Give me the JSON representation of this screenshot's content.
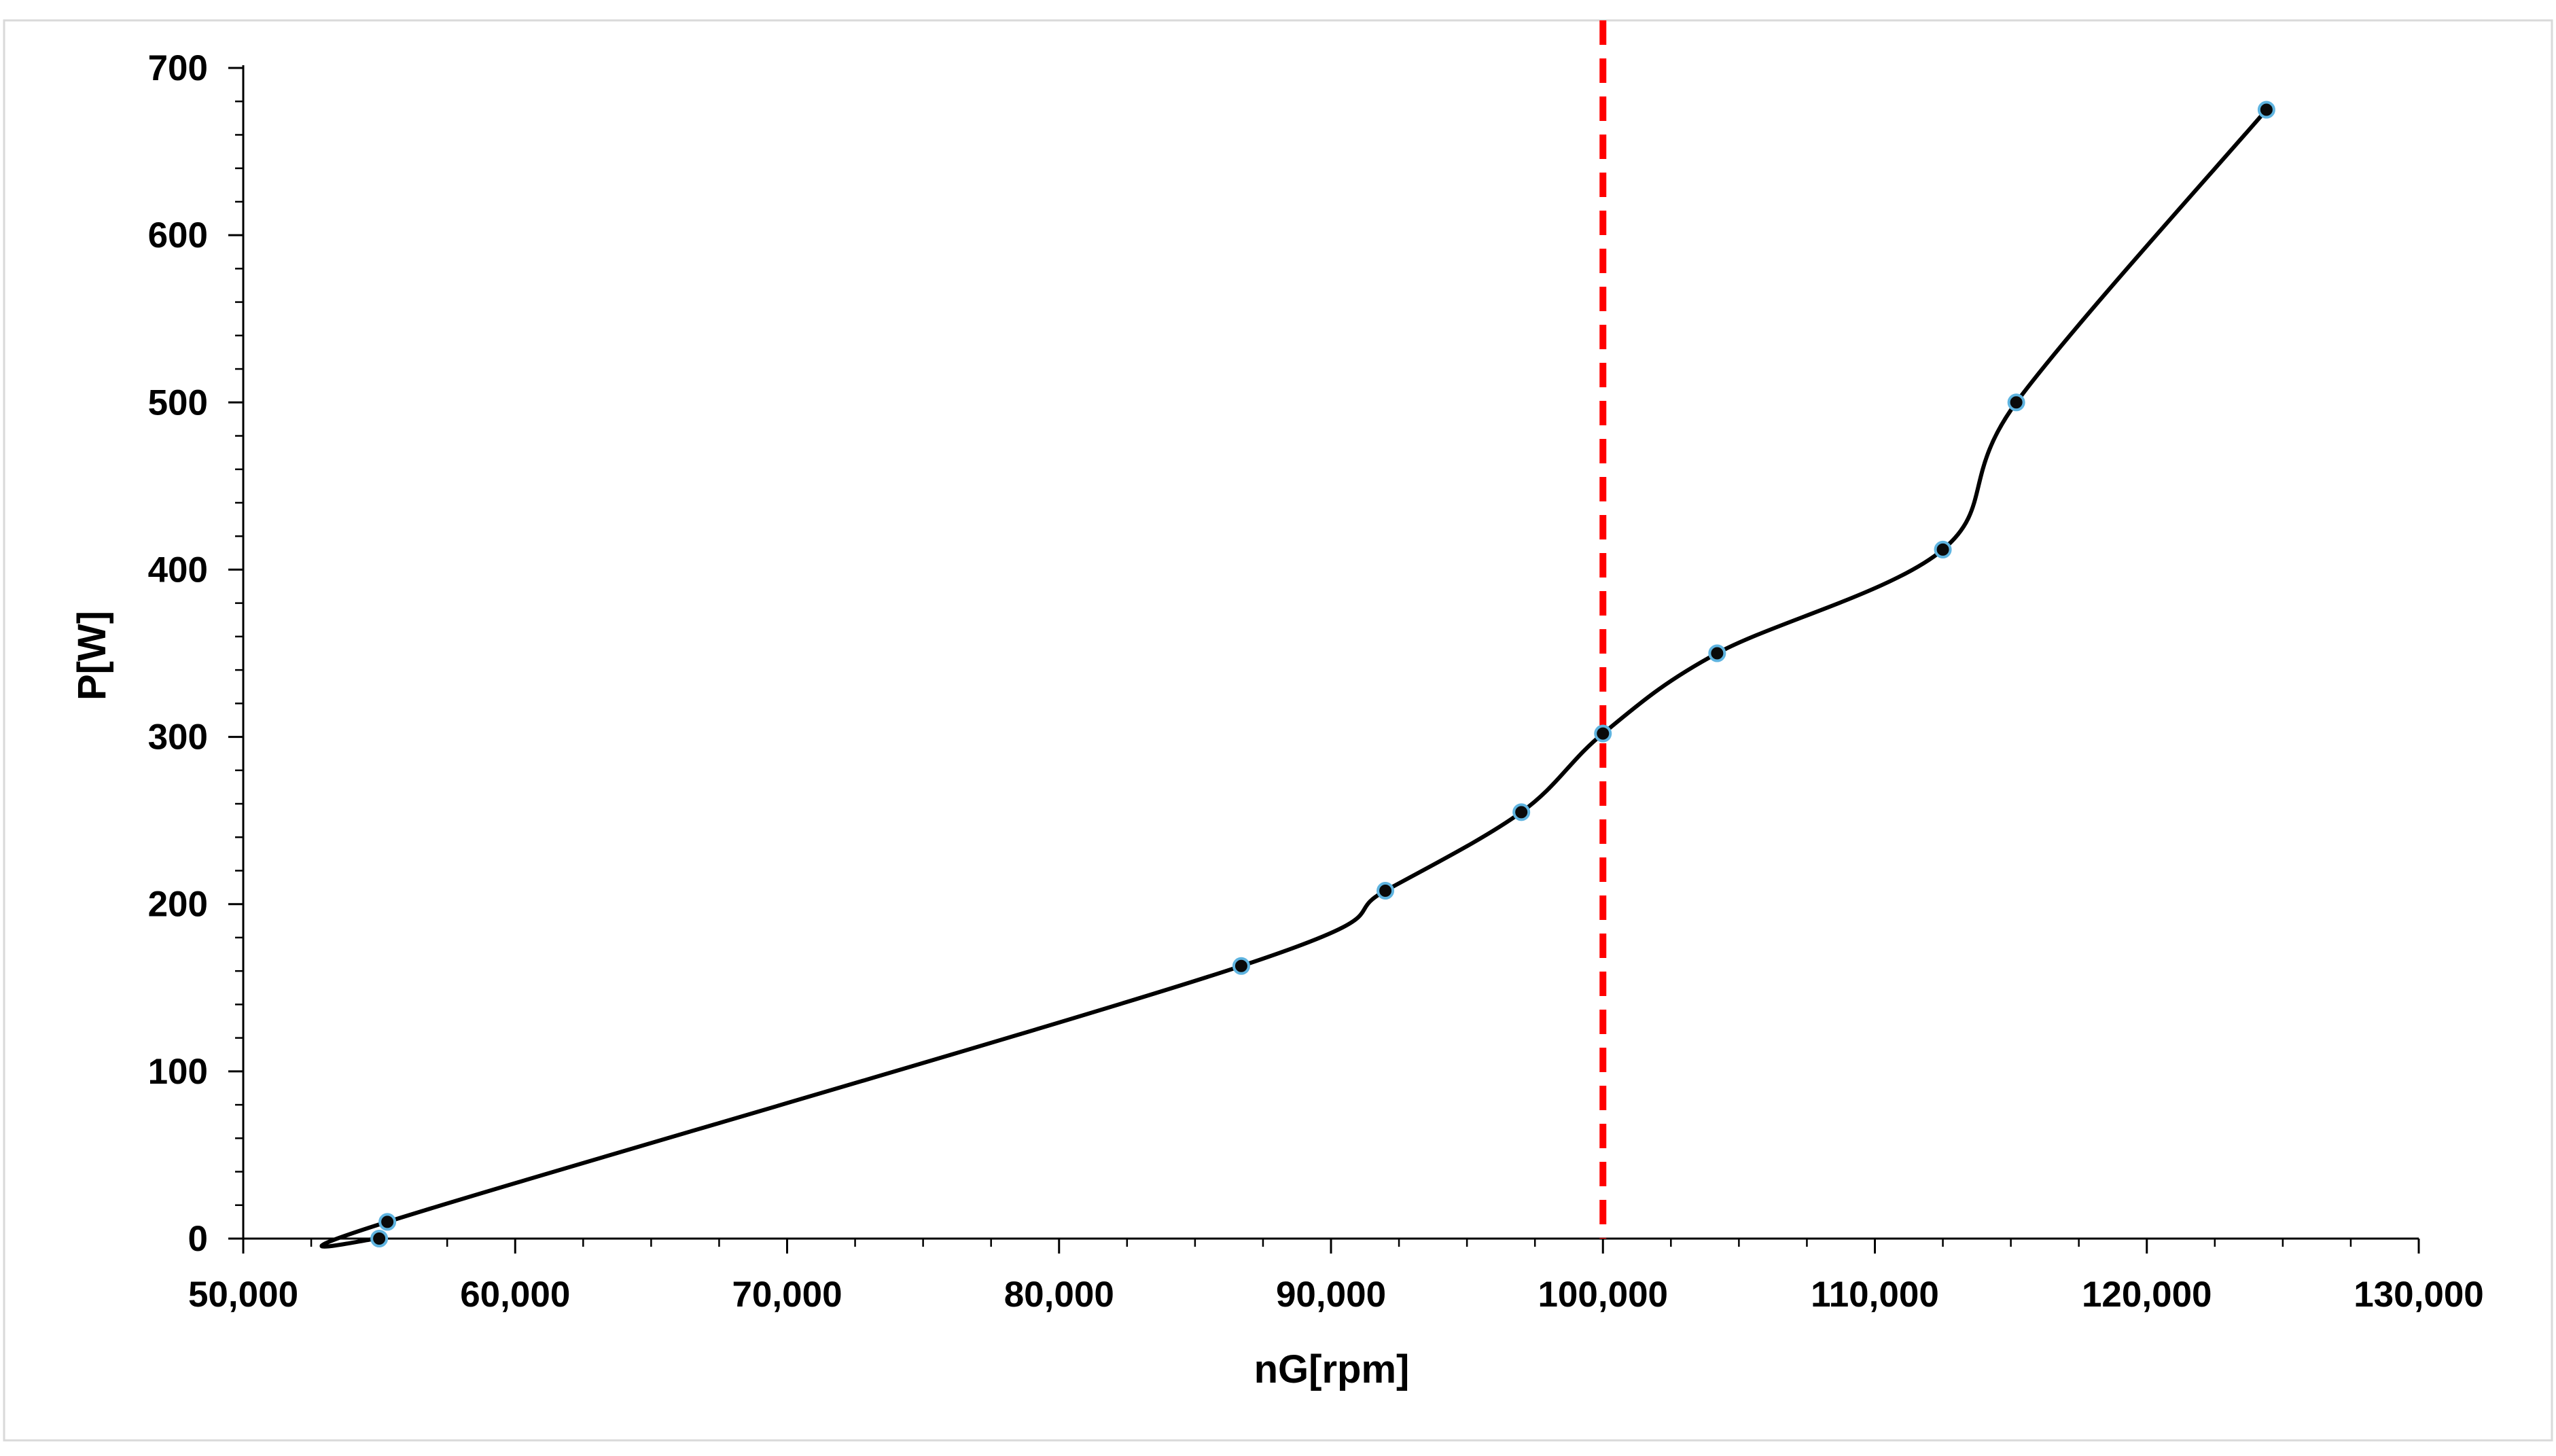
{
  "chart_data": {
    "type": "line",
    "title": "",
    "xlabel": "nG[rpm]",
    "ylabel": "P[W]",
    "xlim": [
      50000,
      130000
    ],
    "ylim": [
      0,
      700
    ],
    "x_ticks": [
      50000,
      60000,
      70000,
      80000,
      90000,
      100000,
      110000,
      120000,
      130000
    ],
    "x_tick_labels": [
      "50,000",
      "60,000",
      "70,000",
      "80,000",
      "90,000",
      "100,000",
      "110,000",
      "120,000",
      "130,000"
    ],
    "y_ticks": [
      0,
      100,
      200,
      300,
      400,
      500,
      600,
      700
    ],
    "y_tick_labels": [
      "0",
      "100",
      "200",
      "300",
      "400",
      "500",
      "600",
      "700"
    ],
    "grid": false,
    "legend": "none",
    "series": [
      {
        "x": [
          55000,
          55300,
          86700,
          92000,
          97000,
          100000,
          104200,
          112500,
          115200,
          124400
        ],
        "y": [
          0,
          10,
          163,
          208,
          255,
          302,
          350,
          412,
          500,
          675
        ]
      }
    ],
    "reference_line": {
      "x": 100000,
      "color": "#ff0000",
      "style": "dashed"
    },
    "colors": {
      "line": "#000000",
      "marker_fill": "#0a0a0a",
      "marker_edge": "#5fb4e0",
      "frame": "#d9d9d9"
    }
  }
}
